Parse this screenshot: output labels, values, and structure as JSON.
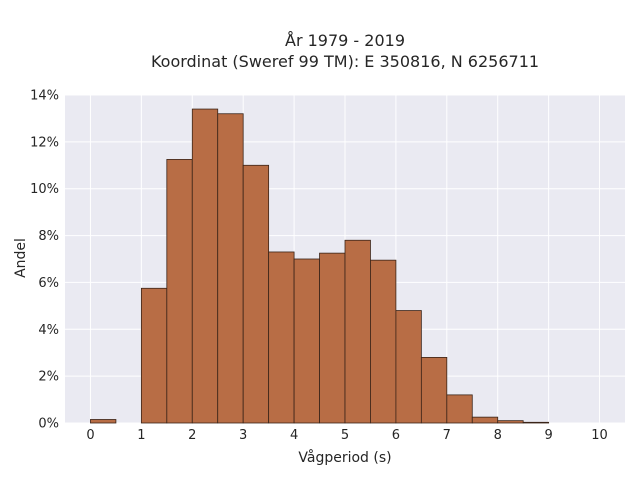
{
  "chart_data": {
    "type": "bar",
    "title": [
      "År 1979 - 2019",
      "Koordinat (Sweref 99 TM): E 350816, N 6256711"
    ],
    "xlabel": "Vågperiod (s)",
    "ylabel": "Andel",
    "xlim": [
      -0.5,
      10.5
    ],
    "ylim": [
      0,
      14
    ],
    "xticks": [
      0,
      1,
      2,
      3,
      4,
      5,
      6,
      7,
      8,
      9,
      10
    ],
    "yticks": [
      0,
      2,
      4,
      6,
      8,
      10,
      12,
      14
    ],
    "ytick_suffix": "%",
    "grid": true,
    "bar_color": "#b86d45",
    "edge_color": "#3a2418",
    "background": "#eaeaf2",
    "bin_width": 0.5,
    "bins": [
      {
        "start": 0.0,
        "value": 0.15
      },
      {
        "start": 0.5,
        "value": 0.0
      },
      {
        "start": 1.0,
        "value": 5.75
      },
      {
        "start": 1.5,
        "value": 11.25
      },
      {
        "start": 2.0,
        "value": 13.4
      },
      {
        "start": 2.5,
        "value": 13.2
      },
      {
        "start": 3.0,
        "value": 11.0
      },
      {
        "start": 3.5,
        "value": 7.3
      },
      {
        "start": 4.0,
        "value": 7.0
      },
      {
        "start": 4.5,
        "value": 7.25
      },
      {
        "start": 5.0,
        "value": 7.8
      },
      {
        "start": 5.5,
        "value": 6.95
      },
      {
        "start": 6.0,
        "value": 4.8
      },
      {
        "start": 6.5,
        "value": 2.8
      },
      {
        "start": 7.0,
        "value": 1.2
      },
      {
        "start": 7.5,
        "value": 0.25
      },
      {
        "start": 8.0,
        "value": 0.1
      },
      {
        "start": 8.5,
        "value": 0.03
      }
    ]
  }
}
